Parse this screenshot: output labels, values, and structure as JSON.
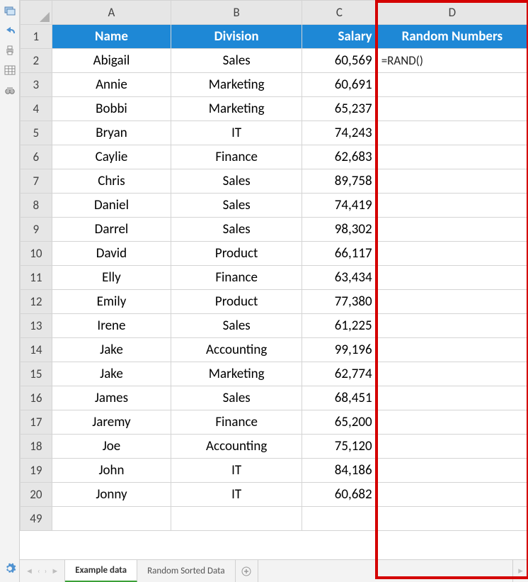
{
  "columns": {
    "A": {
      "letter": "A",
      "header": "Name",
      "align": "center"
    },
    "B": {
      "letter": "B",
      "header": "Division",
      "align": "center"
    },
    "C": {
      "letter": "C",
      "header": "Salary",
      "align": "right"
    },
    "D": {
      "letter": "D",
      "header": "Random Numbers",
      "align": "center"
    }
  },
  "header_bg": "#1e88d6",
  "header_fg": "#ffffff",
  "highlight_border_color": "#d40000",
  "formula_cell": "=RAND()",
  "rows": [
    {
      "n": 2,
      "name": "Abigail",
      "division": "Sales",
      "salary": "60,569",
      "d": "=RAND()"
    },
    {
      "n": 3,
      "name": "Annie",
      "division": "Marketing",
      "salary": "60,691",
      "d": ""
    },
    {
      "n": 4,
      "name": "Bobbi",
      "division": "Marketing",
      "salary": "65,237",
      "d": ""
    },
    {
      "n": 5,
      "name": "Bryan",
      "division": "IT",
      "salary": "74,243",
      "d": ""
    },
    {
      "n": 6,
      "name": "Caylie",
      "division": "Finance",
      "salary": "62,683",
      "d": ""
    },
    {
      "n": 7,
      "name": "Chris",
      "division": "Sales",
      "salary": "89,758",
      "d": ""
    },
    {
      "n": 8,
      "name": "Daniel",
      "division": "Sales",
      "salary": "74,419",
      "d": ""
    },
    {
      "n": 9,
      "name": "Darrel",
      "division": "Sales",
      "salary": "98,302",
      "d": ""
    },
    {
      "n": 10,
      "name": "David",
      "division": "Product",
      "salary": "66,117",
      "d": ""
    },
    {
      "n": 11,
      "name": "Elly",
      "division": "Finance",
      "salary": "63,434",
      "d": ""
    },
    {
      "n": 12,
      "name": "Emily",
      "division": "Product",
      "salary": "77,380",
      "d": ""
    },
    {
      "n": 13,
      "name": "Irene",
      "division": "Sales",
      "salary": "61,225",
      "d": ""
    },
    {
      "n": 14,
      "name": "Jake",
      "division": "Accounting",
      "salary": "99,196",
      "d": ""
    },
    {
      "n": 15,
      "name": "Jake",
      "division": "Marketing",
      "salary": "62,774",
      "d": ""
    },
    {
      "n": 16,
      "name": "James",
      "division": "Sales",
      "salary": "68,451",
      "d": ""
    },
    {
      "n": 17,
      "name": "Jaremy",
      "division": "Finance",
      "salary": "65,200",
      "d": ""
    },
    {
      "n": 18,
      "name": "Joe",
      "division": "Accounting",
      "salary": "75,120",
      "d": ""
    },
    {
      "n": 19,
      "name": "John",
      "division": "IT",
      "salary": "84,186",
      "d": ""
    },
    {
      "n": 20,
      "name": "Jonny",
      "division": "IT",
      "salary": "60,682",
      "d": ""
    }
  ],
  "extra_row_number": "49",
  "tabs": {
    "active": "Example data",
    "other": "Random Sorted Data"
  },
  "side_icons": [
    "layers-icon",
    "undo-icon",
    "print-icon",
    "table-icon",
    "binoculars-icon"
  ],
  "gear_icon": "gear-icon",
  "colors": {
    "col_head_bg": "#e6e6e6",
    "grid_border": "#d4d4d4",
    "tab_active_indicator": "#3ba038"
  }
}
